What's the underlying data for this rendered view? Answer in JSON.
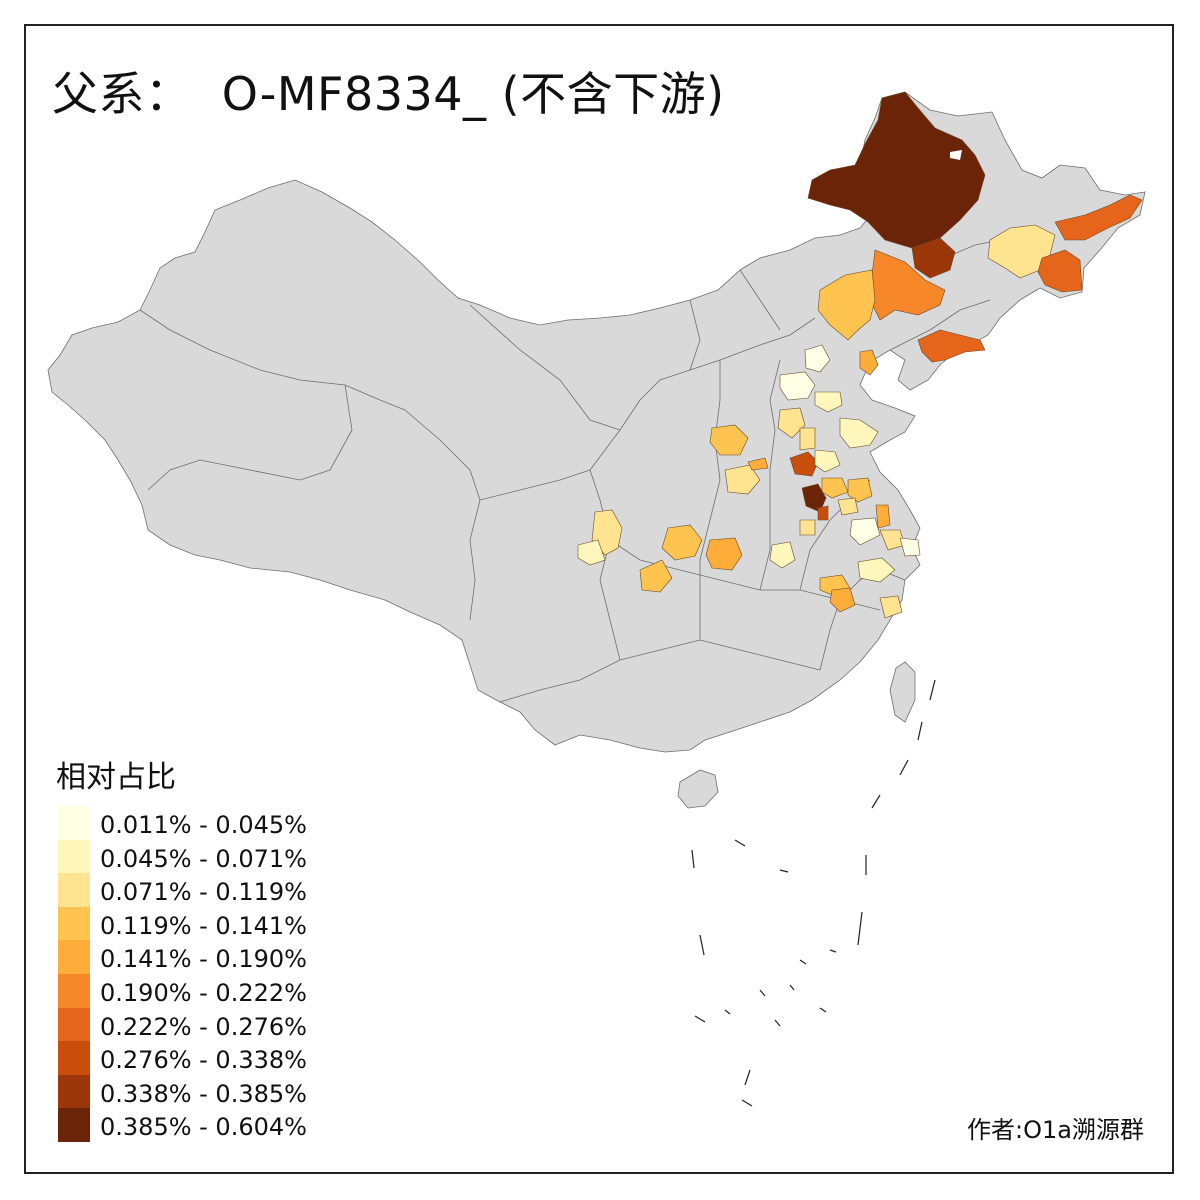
{
  "title": "父系：  O-MF8334_ (不含下游)",
  "legend": {
    "title": "相对占比",
    "items": [
      {
        "label": "0.011% - 0.045%",
        "color": "#ffffe5"
      },
      {
        "label": "0.045% - 0.071%",
        "color": "#fff7bc"
      },
      {
        "label": "0.071% - 0.119%",
        "color": "#fee391"
      },
      {
        "label": "0.119% - 0.141%",
        "color": "#fec44f"
      },
      {
        "label": "0.141% - 0.190%",
        "color": "#feac3a"
      },
      {
        "label": "0.190% - 0.222%",
        "color": "#f7882a"
      },
      {
        "label": "0.222% - 0.276%",
        "color": "#e5661a"
      },
      {
        "label": "0.276% - 0.338%",
        "color": "#c94e0c"
      },
      {
        "label": "0.338% - 0.385%",
        "color": "#9a3607"
      },
      {
        "label": "0.385% - 0.604%",
        "color": "#6b2408"
      }
    ]
  },
  "author": "作者:O1a溯源群",
  "map_colors": {
    "land": "#d9d9d9",
    "border": "#6e6e6e"
  }
}
